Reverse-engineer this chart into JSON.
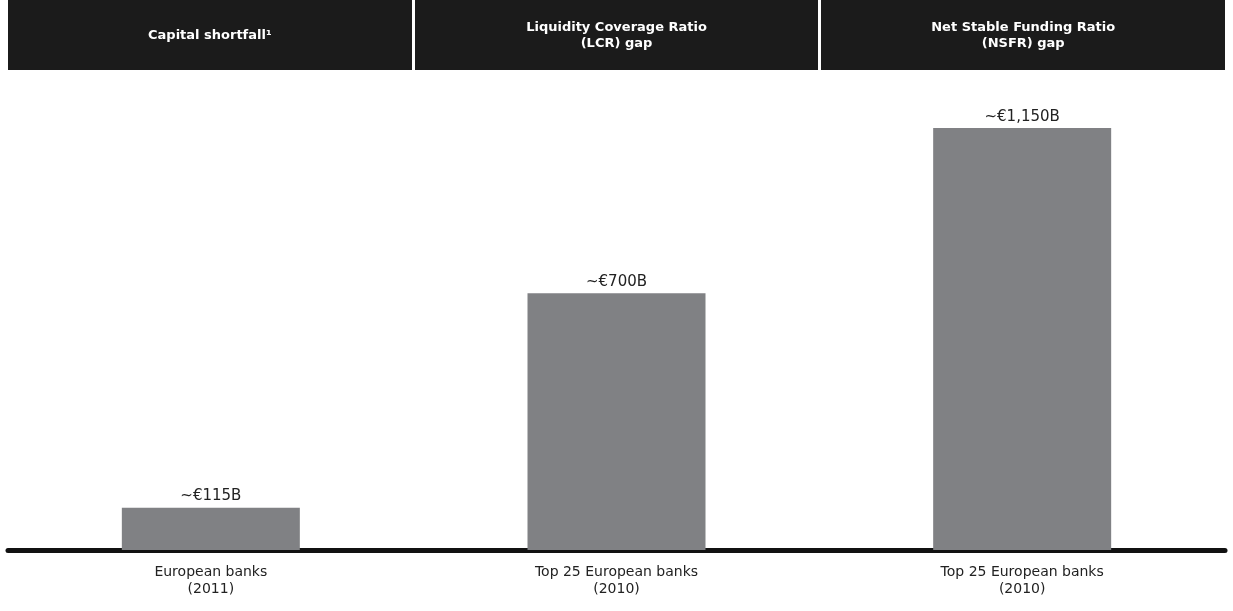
{
  "chart_data": {
    "type": "bar",
    "annotations": [
      "Capital shortfall¹",
      "Liquidity Coverage Ratio\n(LCR) gap",
      "Net Stable Funding Ratio\n(NSFR) gap"
    ],
    "categories": [
      "European banks\n(2011)",
      "Top 25 European banks\n(2010)",
      "Top 25 European banks\n(2010)"
    ],
    "values": [
      115,
      700,
      1150
    ],
    "value_labels": [
      "~€115B",
      "~€700B",
      "~€1,150B"
    ],
    "color": "#808184"
  }
}
